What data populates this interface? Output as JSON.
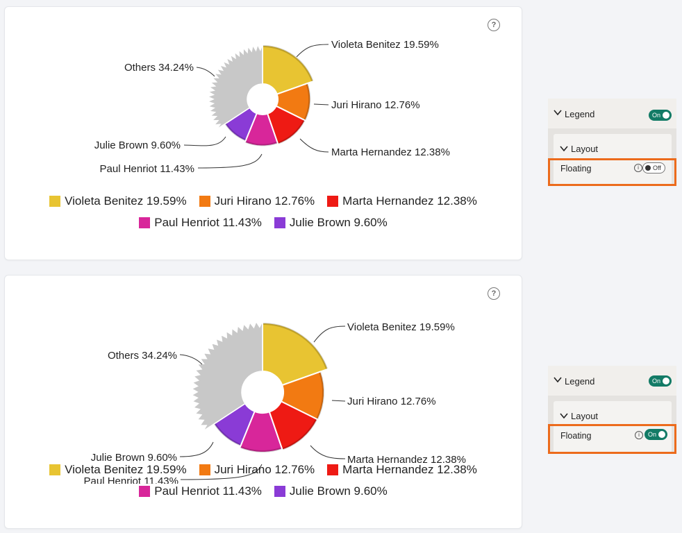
{
  "help_glyph": "?",
  "chart_data": [
    {
      "type": "pie",
      "variant": "rose-donut",
      "legend_floating": false,
      "categories": [
        "Violeta Benitez",
        "Juri Hirano",
        "Marta Hernandez",
        "Paul Henriot",
        "Julie Brown",
        "Others"
      ],
      "values": [
        19.59,
        12.76,
        12.38,
        11.43,
        9.6,
        34.24
      ],
      "data_labels": [
        "Violeta Benitez 19.59%",
        "Juri Hirano 12.76%",
        "Marta Hernandez 12.38%",
        "Paul Henriot 11.43%",
        "Julie Brown 9.60%",
        "Others 34.24%"
      ],
      "legend": [
        "Violeta Benitez 19.59%",
        "Juri Hirano 12.76%",
        "Marta Hernandez 12.38%",
        "Paul Henriot 11.43%",
        "Julie Brown 9.60%"
      ],
      "legend_placement": "bottom",
      "colors": [
        "#e8c432",
        "#f27a12",
        "#ee1a14",
        "#d8269a",
        "#8a3bd6",
        "#c8c8c8"
      ]
    },
    {
      "type": "pie",
      "variant": "rose-donut",
      "legend_floating": true,
      "categories": [
        "Violeta Benitez",
        "Juri Hirano",
        "Marta Hernandez",
        "Paul Henriot",
        "Julie Brown",
        "Others"
      ],
      "values": [
        19.59,
        12.76,
        12.38,
        11.43,
        9.6,
        34.24
      ],
      "data_labels": [
        "Violeta Benitez 19.59%",
        "Juri Hirano 12.76%",
        "Marta Hernandez 12.38%",
        "Paul Henriot 11.43%",
        "Julie Brown 9.60%",
        "Others 34.24%"
      ],
      "legend": [
        "Violeta Benitez 19.59%",
        "Juri Hirano 12.76%",
        "Marta Hernandez 12.38%",
        "Paul Henriot 11.43%",
        "Julie Brown 9.60%"
      ],
      "legend_placement": "bottom (floating, overlapping chart)",
      "colors": [
        "#e8c432",
        "#f27a12",
        "#ee1a14",
        "#d8269a",
        "#8a3bd6",
        "#c8c8c8"
      ]
    }
  ],
  "legend_colors": [
    "#e8c432",
    "#f27a12",
    "#ee1a14",
    "#d8269a",
    "#8a3bd6"
  ],
  "legend_row1": [
    "Violeta Benitez 19.59%",
    "Juri Hirano 12.76%",
    "Marta Hernandez 12.38%"
  ],
  "legend_row2": [
    "Paul Henriot 11.43%",
    "Julie Brown 9.60%"
  ],
  "panels": [
    {
      "legend_label": "Legend",
      "legend_toggle": "On",
      "layout_label": "Layout",
      "floating_label": "Floating",
      "info_glyph": "i",
      "floating_toggle": "Off",
      "floating_on": false
    },
    {
      "legend_label": "Legend",
      "legend_toggle": "On",
      "layout_label": "Layout",
      "floating_label": "Floating",
      "info_glyph": "i",
      "floating_toggle": "On",
      "floating_on": true
    }
  ],
  "highlight_color": "#ec6b1c"
}
